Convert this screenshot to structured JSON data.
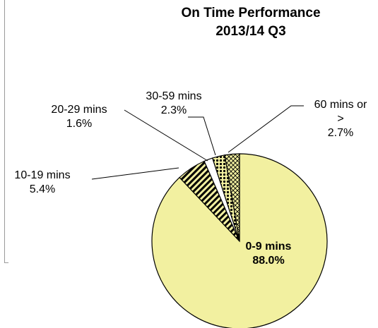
{
  "chart_data": {
    "type": "pie",
    "title": [
      "On Time Performance",
      "2013/14 Q3"
    ],
    "slices": [
      {
        "label": "0-9 mins",
        "value": 88.0,
        "display": "88.0%",
        "color": "#f2f0a0",
        "pattern": "solid"
      },
      {
        "label": "10-19 mins",
        "value": 5.4,
        "display": "5.4%",
        "color": "#f2f0a0",
        "pattern": "diagonal"
      },
      {
        "label": "20-29 mins",
        "value": 1.6,
        "display": "1.6%",
        "color": "#ffffff",
        "pattern": "solid"
      },
      {
        "label": "30-59 mins",
        "value": 2.3,
        "display": "2.3%",
        "color": "#f2f0a0",
        "pattern": "dots"
      },
      {
        "label": "60 mins or >",
        "label_lines": [
          "60 mins or",
          ">"
        ],
        "value": 2.7,
        "display": "2.7%",
        "color": "#f2f0a0",
        "pattern": "crosshatch"
      }
    ]
  }
}
